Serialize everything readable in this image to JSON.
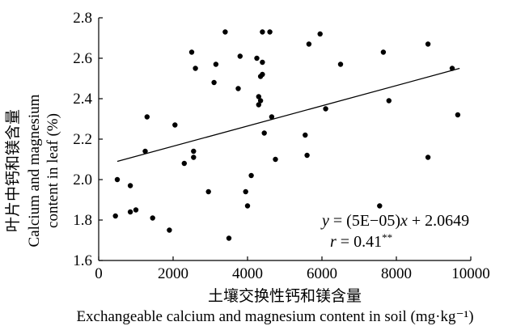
{
  "chart_data": {
    "type": "scatter",
    "xlabel_zh": "土壤交换性钙和镁含量",
    "xlabel_en": "Exchangeable calcium and magnesium content in soil (mg·kg⁻¹)",
    "ylabel_zh": "叶片中钙和镁含量",
    "ylabel_en_1": "Calcium and magnesium",
    "ylabel_en_2": "content in leaf (%)",
    "xlim": [
      0,
      10000
    ],
    "ylim": [
      1.6,
      2.8
    ],
    "xticks": [
      "0",
      "2000",
      "4000",
      "6000",
      "8000",
      "10000"
    ],
    "yticks": [
      "1.6",
      "1.8",
      "2.0",
      "2.2",
      "2.4",
      "2.6",
      "2.8"
    ],
    "equation": "y = (5E−05)x + 2.0649",
    "r_label": "r = 0.41**",
    "fit": {
      "slope": 5e-05,
      "intercept": 2.0649,
      "x_range": [
        500,
        9700
      ]
    },
    "points": [
      {
        "x": 450,
        "y": 1.82
      },
      {
        "x": 500,
        "y": 2.0
      },
      {
        "x": 850,
        "y": 1.84
      },
      {
        "x": 850,
        "y": 1.97
      },
      {
        "x": 1000,
        "y": 1.85
      },
      {
        "x": 1250,
        "y": 2.14
      },
      {
        "x": 1300,
        "y": 2.31
      },
      {
        "x": 1450,
        "y": 1.81
      },
      {
        "x": 1900,
        "y": 1.75
      },
      {
        "x": 2050,
        "y": 2.27
      },
      {
        "x": 2300,
        "y": 2.08
      },
      {
        "x": 2500,
        "y": 2.63
      },
      {
        "x": 2550,
        "y": 2.11
      },
      {
        "x": 2550,
        "y": 2.14
      },
      {
        "x": 2600,
        "y": 2.55
      },
      {
        "x": 2950,
        "y": 1.94
      },
      {
        "x": 3100,
        "y": 2.48
      },
      {
        "x": 3150,
        "y": 2.57
      },
      {
        "x": 3400,
        "y": 2.73
      },
      {
        "x": 3500,
        "y": 1.71
      },
      {
        "x": 3750,
        "y": 2.45
      },
      {
        "x": 3800,
        "y": 2.61
      },
      {
        "x": 3950,
        "y": 1.94
      },
      {
        "x": 4000,
        "y": 1.87
      },
      {
        "x": 4100,
        "y": 2.02
      },
      {
        "x": 4250,
        "y": 2.6
      },
      {
        "x": 4300,
        "y": 2.37
      },
      {
        "x": 4300,
        "y": 2.41
      },
      {
        "x": 4350,
        "y": 2.39
      },
      {
        "x": 4350,
        "y": 2.51
      },
      {
        "x": 4400,
        "y": 2.52
      },
      {
        "x": 4400,
        "y": 2.58
      },
      {
        "x": 4400,
        "y": 2.73
      },
      {
        "x": 4450,
        "y": 2.23
      },
      {
        "x": 4600,
        "y": 2.73
      },
      {
        "x": 4650,
        "y": 2.31
      },
      {
        "x": 4750,
        "y": 2.1
      },
      {
        "x": 5550,
        "y": 2.22
      },
      {
        "x": 5600,
        "y": 2.12
      },
      {
        "x": 5650,
        "y": 2.67
      },
      {
        "x": 5950,
        "y": 2.72
      },
      {
        "x": 6100,
        "y": 2.35
      },
      {
        "x": 6500,
        "y": 2.57
      },
      {
        "x": 7550,
        "y": 1.87
      },
      {
        "x": 7650,
        "y": 2.63
      },
      {
        "x": 7800,
        "y": 2.39
      },
      {
        "x": 8850,
        "y": 2.67
      },
      {
        "x": 8850,
        "y": 2.11
      },
      {
        "x": 9500,
        "y": 2.55
      },
      {
        "x": 9650,
        "y": 2.32
      }
    ]
  }
}
